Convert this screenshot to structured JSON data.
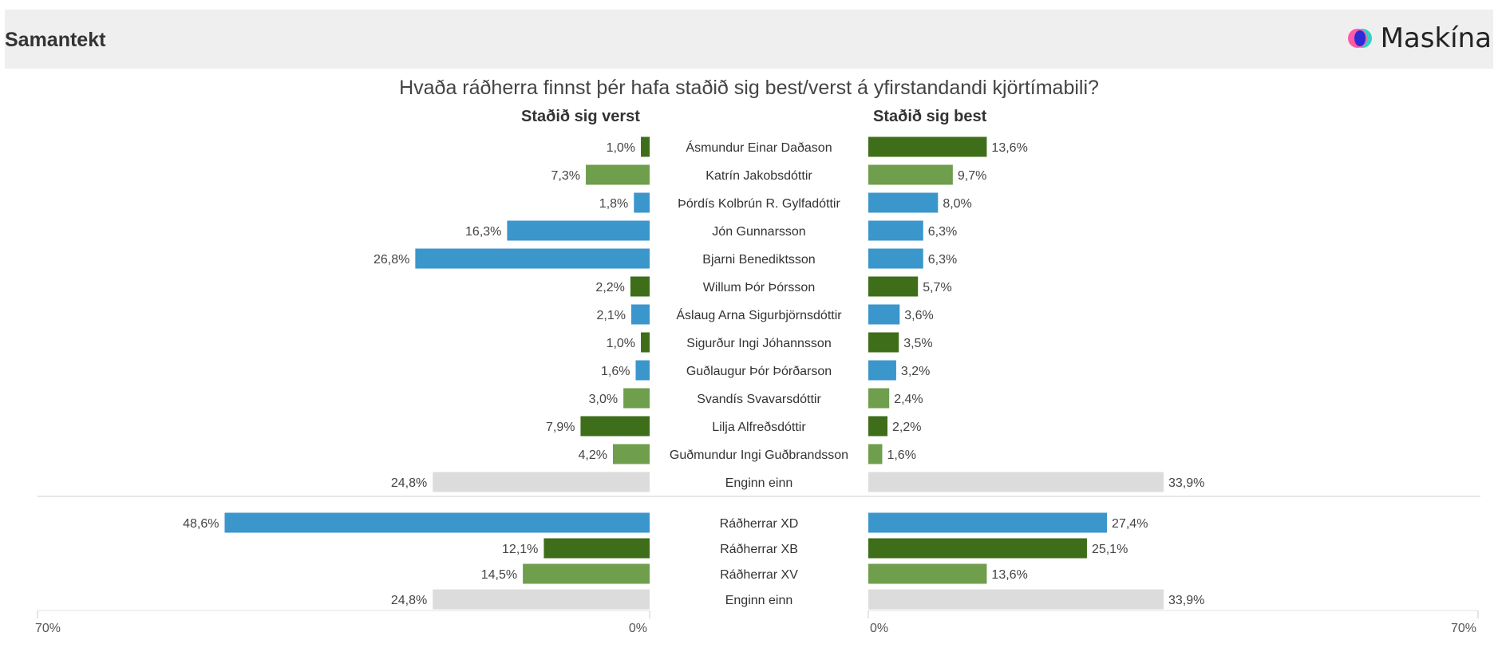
{
  "header": {
    "title": "Samantekt",
    "brand": "Maskína"
  },
  "chart_data": {
    "type": "bar",
    "title": "Hvaða ráðherra finnst þér hafa staðið sig best/verst á yfirstandandi kjörtímabili?",
    "left_label": "Staðið sig verst",
    "right_label": "Staðið sig best",
    "xlim": [
      0,
      70
    ],
    "axis_labels": {
      "left_outer": "70%",
      "left_inner": "0%",
      "right_inner": "0%",
      "right_outer": "70%"
    },
    "colors": {
      "dark_green": "#3f6e1a",
      "light_green": "#6f9e4c",
      "blue": "#3b96cb",
      "grey": "#dcdcdc"
    },
    "groups": [
      {
        "rows": [
          {
            "label": "Ásmundur Einar Daðason",
            "worst": 1.0,
            "best": 13.6,
            "worst_label": "1,0%",
            "best_label": "13,6%",
            "color": "dark_green"
          },
          {
            "label": "Katrín Jakobsdóttir",
            "worst": 7.3,
            "best": 9.7,
            "worst_label": "7,3%",
            "best_label": "9,7%",
            "color": "light_green"
          },
          {
            "label": "Þórdís Kolbrún R. Gylfadóttir",
            "worst": 1.8,
            "best": 8.0,
            "worst_label": "1,8%",
            "best_label": "8,0%",
            "color": "blue"
          },
          {
            "label": "Jón Gunnarsson",
            "worst": 16.3,
            "best": 6.3,
            "worst_label": "16,3%",
            "best_label": "6,3%",
            "color": "blue"
          },
          {
            "label": "Bjarni Benediktsson",
            "worst": 26.8,
            "best": 6.3,
            "worst_label": "26,8%",
            "best_label": "6,3%",
            "color": "blue"
          },
          {
            "label": "Willum Þór Þórsson",
            "worst": 2.2,
            "best": 5.7,
            "worst_label": "2,2%",
            "best_label": "5,7%",
            "color": "dark_green"
          },
          {
            "label": "Áslaug Arna Sigurbjörnsdóttir",
            "worst": 2.1,
            "best": 3.6,
            "worst_label": "2,1%",
            "best_label": "3,6%",
            "color": "blue"
          },
          {
            "label": "Sigurður Ingi Jóhannsson",
            "worst": 1.0,
            "best": 3.5,
            "worst_label": "1,0%",
            "best_label": "3,5%",
            "color": "dark_green"
          },
          {
            "label": "Guðlaugur Þór Þórðarson",
            "worst": 1.6,
            "best": 3.2,
            "worst_label": "1,6%",
            "best_label": "3,2%",
            "color": "blue"
          },
          {
            "label": "Svandís Svavarsdóttir",
            "worst": 3.0,
            "best": 2.4,
            "worst_label": "3,0%",
            "best_label": "2,4%",
            "color": "light_green"
          },
          {
            "label": "Lilja Alfreðsdóttir",
            "worst": 7.9,
            "best": 2.2,
            "worst_label": "7,9%",
            "best_label": "2,2%",
            "color": "dark_green"
          },
          {
            "label": "Guðmundur Ingi Guðbrandsson",
            "worst": 4.2,
            "best": 1.6,
            "worst_label": "4,2%",
            "best_label": "1,6%",
            "color": "light_green"
          },
          {
            "label": "Enginn einn",
            "worst": 24.8,
            "best": 33.9,
            "worst_label": "24,8%",
            "best_label": "33,9%",
            "color": "grey"
          }
        ]
      },
      {
        "rows": [
          {
            "label": "Ráðherrar XD",
            "worst": 48.6,
            "best": 27.4,
            "worst_label": "48,6%",
            "best_label": "27,4%",
            "color": "blue"
          },
          {
            "label": "Ráðherrar XB",
            "worst": 12.1,
            "best": 25.1,
            "worst_label": "12,1%",
            "best_label": "25,1%",
            "color": "dark_green"
          },
          {
            "label": "Ráðherrar XV",
            "worst": 14.5,
            "best": 13.6,
            "worst_label": "14,5%",
            "best_label": "13,6%",
            "color": "light_green"
          },
          {
            "label": "Enginn einn",
            "worst": 24.8,
            "best": 33.9,
            "worst_label": "24,8%",
            "best_label": "33,9%",
            "color": "grey"
          }
        ]
      }
    ]
  }
}
